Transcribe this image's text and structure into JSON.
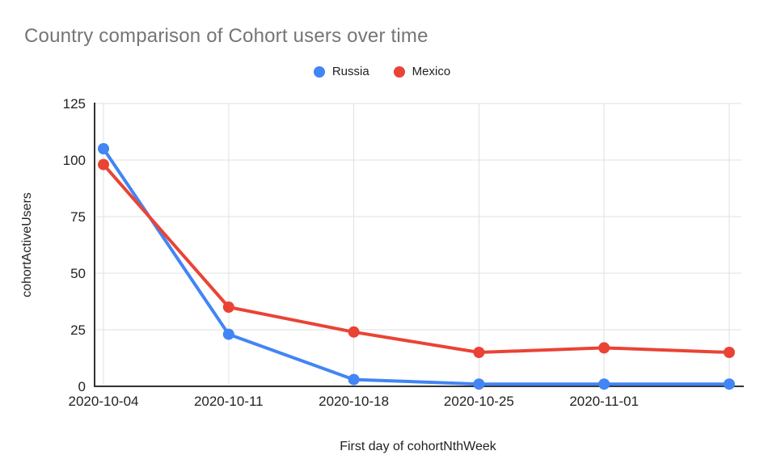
{
  "chart_data": {
    "type": "line",
    "title": "Country comparison of Cohort users over time",
    "xlabel": "First day of cohortNthWeek",
    "ylabel": "cohortActiveUsers",
    "categories": [
      "2020-10-04",
      "2020-10-11",
      "2020-10-18",
      "2020-10-25",
      "2020-11-01",
      ""
    ],
    "series": [
      {
        "name": "Russia",
        "color": "#4285F4",
        "values": [
          105,
          23,
          3,
          1,
          1,
          1
        ]
      },
      {
        "name": "Mexico",
        "color": "#EA4335",
        "values": [
          98,
          35,
          24,
          15,
          17,
          15
        ]
      }
    ],
    "y_ticks": [
      0,
      25,
      50,
      75,
      100,
      125
    ],
    "ylim": [
      0,
      125
    ],
    "grid": true,
    "legend_position": "top",
    "colors": {
      "title_text": "#757575",
      "axis_line": "#333333",
      "gridline": "#e0e0e0",
      "tick_label": "#222222"
    }
  }
}
